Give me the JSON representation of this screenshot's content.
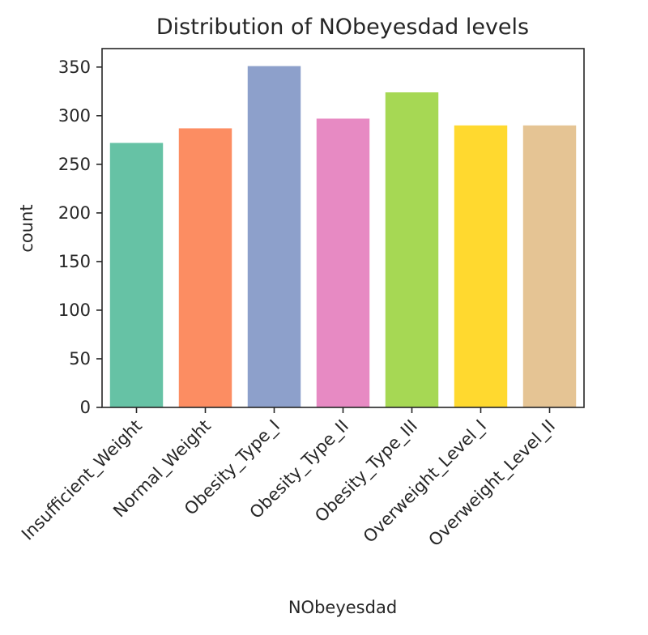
{
  "chart_data": {
    "type": "bar",
    "title": "Distribution of NObeyesdad levels",
    "xlabel": "NObeyesdad",
    "ylabel": "count",
    "categories": [
      "Insufficient_Weight",
      "Normal_Weight",
      "Obesity_Type_I",
      "Obesity_Type_II",
      "Obesity_Type_III",
      "Overweight_Level_I",
      "Overweight_Level_II"
    ],
    "values": [
      272,
      287,
      351,
      297,
      324,
      290,
      290
    ],
    "colors": [
      "#66c2a5",
      "#fc8d62",
      "#8da0cb",
      "#e78ac3",
      "#a6d854",
      "#ffd92f",
      "#e5c494"
    ],
    "ylim": [
      0,
      369
    ],
    "yticks": [
      0,
      50,
      100,
      150,
      200,
      250,
      300,
      350
    ],
    "grid": false,
    "legend": "none"
  }
}
